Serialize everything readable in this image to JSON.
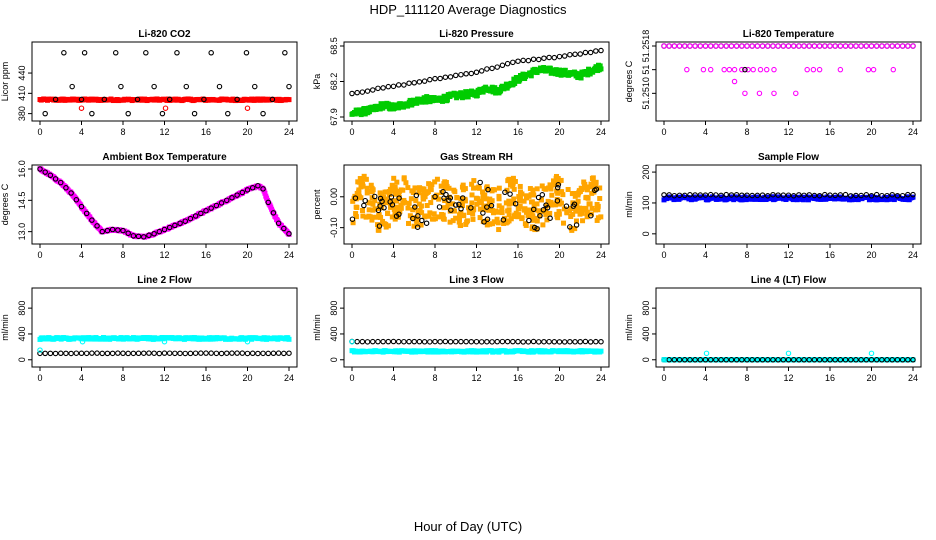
{
  "figure": {
    "title": "HDP_111120  Average Diagnostics",
    "xlabel": "Hour of Day (UTC)"
  },
  "chart_data": [
    {
      "type": "scatter",
      "title": "Li-820 CO2",
      "ylabel": "Licor ppm",
      "xlim": [
        0,
        24
      ],
      "ylim": [
        375,
        480
      ],
      "xticks": [
        0,
        4,
        8,
        12,
        16,
        20,
        24
      ],
      "yticks": [
        380,
        410,
        440
      ],
      "series": [
        {
          "marker": "dense",
          "color": "#ff0000",
          "kind": "const",
          "value": 400.5,
          "jitter": 1.2
        },
        {
          "marker": "open",
          "color": "#000000",
          "kind": "list",
          "x": [
            0.5,
            1.5,
            2.3,
            3.1,
            4.0,
            4.3,
            5.0,
            6.2,
            7.3,
            7.8,
            8.5,
            9.4,
            10.2,
            11.0,
            11.8,
            12.5,
            13.2,
            14.1,
            14.9,
            15.8,
            16.5,
            17.3,
            18.1,
            19.0,
            19.9,
            20.7,
            21.5,
            22.4,
            23.6,
            24.0
          ],
          "y": [
            380,
            401,
            470,
            420,
            401,
            470,
            380,
            401,
            470,
            420,
            380,
            401,
            470,
            420,
            380,
            401,
            470,
            420,
            380,
            401,
            470,
            420,
            380,
            401,
            470,
            420,
            380,
            401,
            470,
            420
          ]
        },
        {
          "marker": "open",
          "color": "#ff0000",
          "kind": "list",
          "x": [
            4.0,
            12.1,
            20.0
          ],
          "y": [
            388,
            388,
            388
          ]
        }
      ]
    },
    {
      "type": "scatter",
      "title": "Li-820 Pressure",
      "ylabel": "kPa",
      "xlim": [
        0,
        24
      ],
      "ylim": [
        67.9,
        68.5
      ],
      "xticks": [
        0,
        4,
        8,
        12,
        16,
        20,
        24
      ],
      "yticks": [
        67.9,
        68.2,
        68.5
      ],
      "series": [
        {
          "marker": "dense",
          "color": "#00cc00",
          "kind": "curve",
          "x": [
            0,
            2,
            3,
            4,
            6,
            7,
            8,
            10,
            12,
            13,
            14,
            16,
            17,
            18,
            20,
            22,
            24
          ],
          "y": [
            67.93,
            67.96,
            68.0,
            67.98,
            68.03,
            68.05,
            68.04,
            68.08,
            68.1,
            68.15,
            68.12,
            68.22,
            68.26,
            68.3,
            68.28,
            68.25,
            68.33
          ],
          "jitter": 0.025
        },
        {
          "marker": "open",
          "color": "#000000",
          "kind": "curve",
          "x": [
            0,
            4,
            8,
            12,
            16,
            20,
            24
          ],
          "y": [
            68.1,
            68.16,
            68.22,
            68.28,
            68.37,
            68.41,
            68.46
          ],
          "jitter": 0.005
        }
      ]
    },
    {
      "type": "scatter",
      "title": "Li-820 Temperature",
      "ylabel": "degrees C",
      "xlim": [
        0,
        24
      ],
      "ylim": [
        51.2506,
        51.2518
      ],
      "xticks": [
        0,
        4,
        8,
        12,
        16,
        20,
        24
      ],
      "yticks": [
        51.251,
        51.2514,
        51.2518
      ],
      "yticklabels": [
        "51.2510",
        "51",
        "51.2518"
      ],
      "series": [
        {
          "marker": "open",
          "color": "#000000",
          "kind": "const",
          "value": 51.2518,
          "jitter": 0
        },
        {
          "marker": "open",
          "color": "#ff00ff",
          "kind": "const",
          "value": 51.2518,
          "jitter": 0
        },
        {
          "marker": "open",
          "color": "#ff00ff",
          "kind": "list",
          "x": [
            2.2,
            3.8,
            4.5,
            5.8,
            6.3,
            6.8,
            7.5,
            8.1,
            8.6,
            9.3,
            9.9,
            10.6,
            13.8,
            14.4,
            15.0,
            17.0,
            19.7,
            20.2,
            22.1,
            6.8,
            7.8,
            9.2,
            10.6,
            12.7
          ],
          "y": [
            51.2514,
            51.2514,
            51.2514,
            51.2514,
            51.2514,
            51.2514,
            51.2514,
            51.2514,
            51.2514,
            51.2514,
            51.2514,
            51.2514,
            51.2514,
            51.2514,
            51.2514,
            51.2514,
            51.2514,
            51.2514,
            51.2514,
            51.2512,
            51.251,
            51.251,
            51.251,
            51.251
          ]
        },
        {
          "marker": "open",
          "color": "#000000",
          "kind": "list",
          "x": [
            7.8
          ],
          "y": [
            51.2514
          ]
        }
      ]
    },
    {
      "type": "scatter",
      "title": "Ambient Box Temperature",
      "ylabel": "degrees C",
      "xlim": [
        0,
        24
      ],
      "ylim": [
        12.6,
        16.0
      ],
      "xticks": [
        0,
        4,
        8,
        12,
        16,
        20,
        24
      ],
      "yticks": [
        13.0,
        14.5,
        16.0
      ],
      "yticklabels": [
        "13.0",
        "14.5",
        "16.0"
      ],
      "series": [
        {
          "marker": "dense",
          "color": "#ff00ff",
          "kind": "curve",
          "x": [
            0,
            1,
            2,
            3,
            4,
            5,
            6,
            7,
            8,
            9,
            10,
            11,
            12,
            13,
            14,
            15,
            16,
            17,
            18,
            19,
            20,
            21,
            21.5,
            22,
            23,
            24
          ],
          "y": [
            16.0,
            15.7,
            15.35,
            14.85,
            14.2,
            13.55,
            13.0,
            13.1,
            13.05,
            12.8,
            12.75,
            12.9,
            13.1,
            13.3,
            13.5,
            13.75,
            14.0,
            14.25,
            14.5,
            14.75,
            15.0,
            15.2,
            15.05,
            14.4,
            13.4,
            12.9
          ],
          "jitter": 0.03
        },
        {
          "marker": "open",
          "color": "#000000",
          "kind": "curvefromprev",
          "step": 0.5,
          "jitter": 0
        }
      ]
    },
    {
      "type": "scatter",
      "title": "Gas Stream RH",
      "ylabel": "percent",
      "xlim": [
        0,
        24
      ],
      "ylim": [
        -0.14,
        0.09
      ],
      "xticks": [
        0,
        4,
        8,
        12,
        16,
        20,
        24
      ],
      "yticks": [
        -0.1,
        0.0
      ],
      "yticklabels": [
        "-0.10",
        "0.00"
      ],
      "series": [
        {
          "marker": "dense",
          "color": "#ffa500",
          "kind": "noise",
          "center": -0.02,
          "amp": 0.07
        },
        {
          "marker": "open",
          "color": "#000000",
          "kind": "noise",
          "center": -0.03,
          "amp": 0.06,
          "count": 70
        }
      ]
    },
    {
      "type": "scatter",
      "title": "Sample Flow",
      "ylabel": "ml/min",
      "xlim": [
        0,
        24
      ],
      "ylim": [
        -20,
        210
      ],
      "xticks": [
        0,
        4,
        8,
        12,
        16,
        20,
        24
      ],
      "yticks": [
        0,
        100,
        200
      ],
      "series": [
        {
          "marker": "dense",
          "color": "#0000ff",
          "kind": "const",
          "value": 115,
          "jitter": 5
        },
        {
          "marker": "open",
          "color": "#000000",
          "kind": "const",
          "value": 125,
          "jitter": 2
        }
      ]
    },
    {
      "type": "scatter",
      "title": "Line 2 Flow",
      "ylabel": "ml/min",
      "xlim": [
        0,
        24
      ],
      "ylim": [
        -50,
        1050
      ],
      "xticks": [
        0,
        4,
        8,
        12,
        16,
        20,
        24
      ],
      "yticks": [
        0,
        400,
        800
      ],
      "series": [
        {
          "marker": "dense",
          "color": "#00ffff",
          "kind": "const",
          "value": 330,
          "jitter": 15
        },
        {
          "marker": "open",
          "color": "#000000",
          "kind": "const",
          "value": 100,
          "jitter": 3
        },
        {
          "marker": "open",
          "color": "#00ffff",
          "kind": "list",
          "x": [
            0.0,
            4.1,
            12.0,
            20.0
          ],
          "y": [
            150,
            280,
            280,
            280
          ]
        }
      ]
    },
    {
      "type": "scatter",
      "title": "Line 3 Flow",
      "ylabel": "ml/min",
      "xlim": [
        0,
        24
      ],
      "ylim": [
        -50,
        1050
      ],
      "xticks": [
        0,
        4,
        8,
        12,
        16,
        20,
        24
      ],
      "yticks": [
        0,
        400,
        800
      ],
      "series": [
        {
          "marker": "dense",
          "color": "#00ffff",
          "kind": "const",
          "value": 130,
          "jitter": 12
        },
        {
          "marker": "open",
          "color": "#000000",
          "kind": "const",
          "value": 280,
          "jitter": 3
        },
        {
          "marker": "open",
          "color": "#00ffff",
          "kind": "list",
          "x": [
            0.0
          ],
          "y": [
            280
          ]
        }
      ]
    },
    {
      "type": "scatter",
      "title": "Line 4 (LT) Flow",
      "ylabel": "ml/min",
      "xlim": [
        0,
        24
      ],
      "ylim": [
        -50,
        1050
      ],
      "xticks": [
        0,
        4,
        8,
        12,
        16,
        20,
        24
      ],
      "yticks": [
        0,
        400,
        800
      ],
      "series": [
        {
          "marker": "dense",
          "color": "#00ffff",
          "kind": "const",
          "value": 0,
          "jitter": 2
        },
        {
          "marker": "open",
          "color": "#000000",
          "kind": "const",
          "value": 0,
          "jitter": 0
        },
        {
          "marker": "open",
          "color": "#00ffff",
          "kind": "list",
          "x": [
            0.0,
            4.1,
            12.0,
            20.0
          ],
          "y": [
            0,
            100,
            100,
            100
          ]
        }
      ]
    }
  ]
}
